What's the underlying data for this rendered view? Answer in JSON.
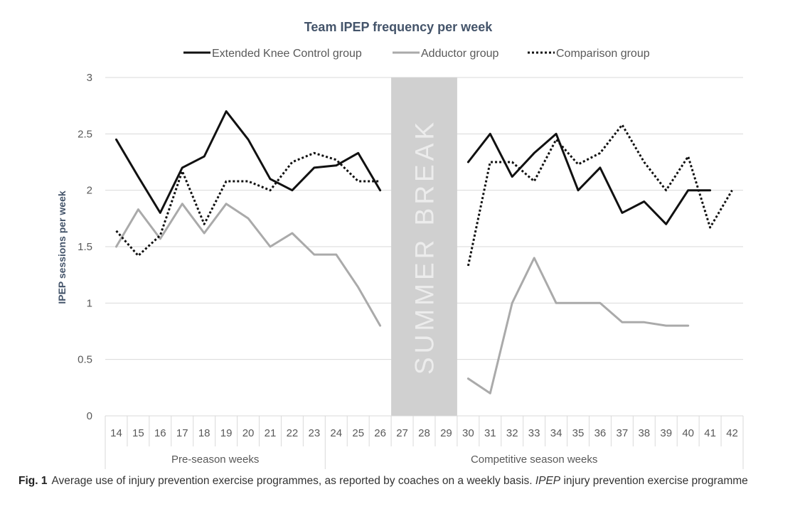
{
  "chart_data": {
    "type": "line",
    "title": "Team IPEP frequency per week",
    "ylabel": "IPEP sessions per week",
    "xlabel": "",
    "ylim": [
      0,
      3
    ],
    "yticks": [
      0,
      0.5,
      1,
      1.5,
      2,
      2.5,
      3
    ],
    "ytick_labels": [
      "0",
      "0.5",
      "1",
      "1.5",
      "2",
      "2.5",
      "3"
    ],
    "grid": "horizontal",
    "legend_position": "top",
    "categories": [
      "14",
      "15",
      "16",
      "17",
      "18",
      "19",
      "20",
      "21",
      "22",
      "23",
      "24",
      "25",
      "26",
      "27",
      "28",
      "29",
      "30",
      "31",
      "32",
      "33",
      "34",
      "35",
      "36",
      "37",
      "38",
      "39",
      "40",
      "41",
      "42"
    ],
    "groups": [
      {
        "label": "Pre-season weeks",
        "from": "14",
        "to": "23"
      },
      {
        "label": "Competitive season weeks",
        "from": "24",
        "to": "42"
      }
    ],
    "shaded_region": {
      "label": "SUMMER BREAK",
      "from": "27",
      "to": "29",
      "color": "#d0d0d0"
    },
    "series": [
      {
        "name": "Extended Knee Control group",
        "color": "#111111",
        "style": "solid",
        "values": [
          2.45,
          2.12,
          1.8,
          2.2,
          2.3,
          2.7,
          2.45,
          2.1,
          2.0,
          2.2,
          2.22,
          2.33,
          2.0,
          null,
          null,
          null,
          2.25,
          2.5,
          2.12,
          2.33,
          2.5,
          2.0,
          2.2,
          1.8,
          1.9,
          1.7,
          2.0,
          2.0,
          null
        ]
      },
      {
        "name": "Adductor group",
        "color": "#aaaaaa",
        "style": "solid",
        "values": [
          1.5,
          1.83,
          1.57,
          1.88,
          1.62,
          1.88,
          1.75,
          1.5,
          1.62,
          1.43,
          1.43,
          1.14,
          0.8,
          null,
          null,
          null,
          0.33,
          0.2,
          1.0,
          1.4,
          1.0,
          1.0,
          1.0,
          0.83,
          0.83,
          0.8,
          0.8,
          null,
          null
        ]
      },
      {
        "name": "Comparison group",
        "color": "#111111",
        "style": "dotted",
        "values": [
          1.64,
          1.42,
          1.6,
          2.17,
          1.7,
          2.08,
          2.08,
          2.0,
          2.25,
          2.33,
          2.27,
          2.08,
          2.08,
          null,
          null,
          null,
          1.33,
          2.25,
          2.25,
          2.08,
          2.45,
          2.23,
          2.33,
          2.58,
          2.25,
          2.0,
          2.3,
          1.67,
          2.0
        ]
      }
    ]
  },
  "caption": {
    "label": "Fig. 1",
    "text_before": "Average use of injury prevention exercise programmes, as reported by coaches on a weekly basis. ",
    "abbr": "IPEP",
    "text_after": " injury prevention exercise programme"
  }
}
